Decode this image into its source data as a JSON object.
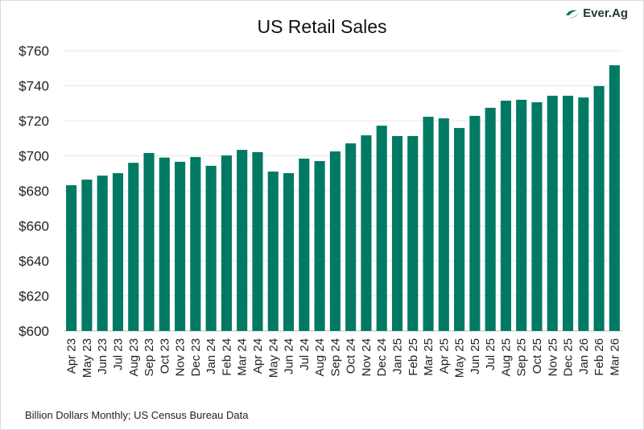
{
  "chart_data": {
    "type": "bar",
    "title": "US Retail Sales",
    "xlabel": "",
    "ylabel": "",
    "ylim": [
      600,
      760
    ],
    "yticks": [
      "$600",
      "$620",
      "$640",
      "$660",
      "$680",
      "$700",
      "$720",
      "$740",
      "$760"
    ],
    "grid": true,
    "bar_color": "#007A63",
    "categories": [
      "Apr 23",
      "May 23",
      "Jun 23",
      "Jul 23",
      "Aug 23",
      "Sep 23",
      "Oct 23",
      "Nov 23",
      "Dec 23",
      "Jan 24",
      "Feb 24",
      "Mar 24",
      "Apr 24",
      "May 24",
      "Jun 24",
      "Jul 24",
      "Aug 24",
      "Sep 24",
      "Oct 24",
      "Nov 24",
      "Dec 24",
      "Jan 25",
      "Feb 25",
      "Mar 25",
      "Apr 25",
      "May 25",
      "Jun 25",
      "Jul 25",
      "Aug 25",
      "Sep 25",
      "Oct 25",
      "Nov 25",
      "Dec 25",
      "Jan 26",
      "Feb 26",
      "Mar 26"
    ],
    "values": [
      683.2,
      686.4,
      688.7,
      690.1,
      696.0,
      701.6,
      699.0,
      696.6,
      699.3,
      694.3,
      700.2,
      703.4,
      702.1,
      691.0,
      690.1,
      698.4,
      697.0,
      702.5,
      707.1,
      711.7,
      717.2,
      711.3,
      711.3,
      722.3,
      721.4,
      715.9,
      722.8,
      727.4,
      731.5,
      732.0,
      730.6,
      734.3,
      734.3,
      733.3,
      739.8,
      751.7
    ]
  },
  "logo": {
    "text": "Ever.Ag",
    "color": "#007A63"
  },
  "note": "Billion Dollars Monthly; US Census Bureau Data"
}
